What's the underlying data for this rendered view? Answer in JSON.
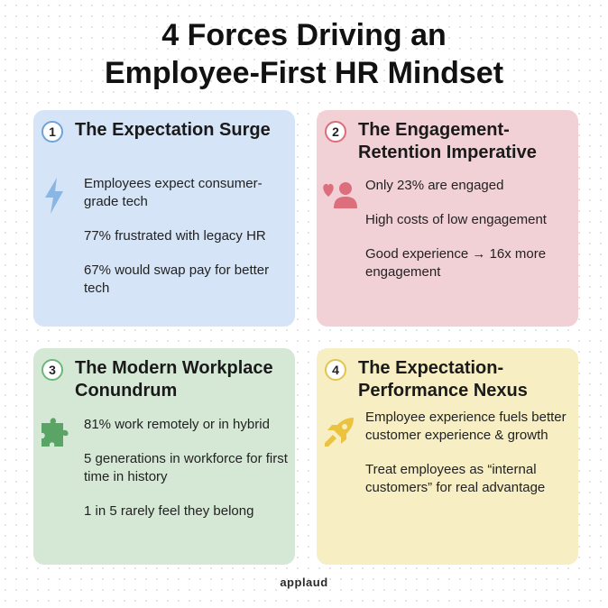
{
  "page": {
    "title_line1": "4 Forces Driving an",
    "title_line2": "Employee-First HR Mindset",
    "brand": "applaud"
  },
  "cards": [
    {
      "number": "1",
      "title": "The Expectation Surge",
      "icon": "lightning-icon",
      "color": "#d5e4f6",
      "accent": "#6fa3d8",
      "items": [
        "Employees expect consumer-grade tech",
        "77% frustrated with legacy HR",
        "67% would swap pay for better tech"
      ]
    },
    {
      "number": "2",
      "title": "The Engagement-Retention Imperative",
      "icon": "heart-person-icon",
      "color": "#f2d1d6",
      "accent": "#db6d79",
      "items": [
        "Only 23% are engaged",
        "High costs of low engagement",
        "Good experience → 16x more engagement"
      ]
    },
    {
      "number": "3",
      "title": "The Modern Workplace Conundrum",
      "icon": "puzzle-icon",
      "color": "#d5e8d6",
      "accent": "#6fb57a",
      "items": [
        "81% work remotely or in hybrid",
        "5 generations in workforce for first time in history",
        "1 in 5 rarely feel they belong"
      ]
    },
    {
      "number": "4",
      "title": "The Expectation-Performance Nexus",
      "icon": "rocket-icon",
      "color": "#f7eec3",
      "accent": "#e3c44d",
      "items": [
        "Employee experience fuels better customer experience & growth",
        "Treat employees as “internal customers” for real advantage"
      ]
    }
  ]
}
